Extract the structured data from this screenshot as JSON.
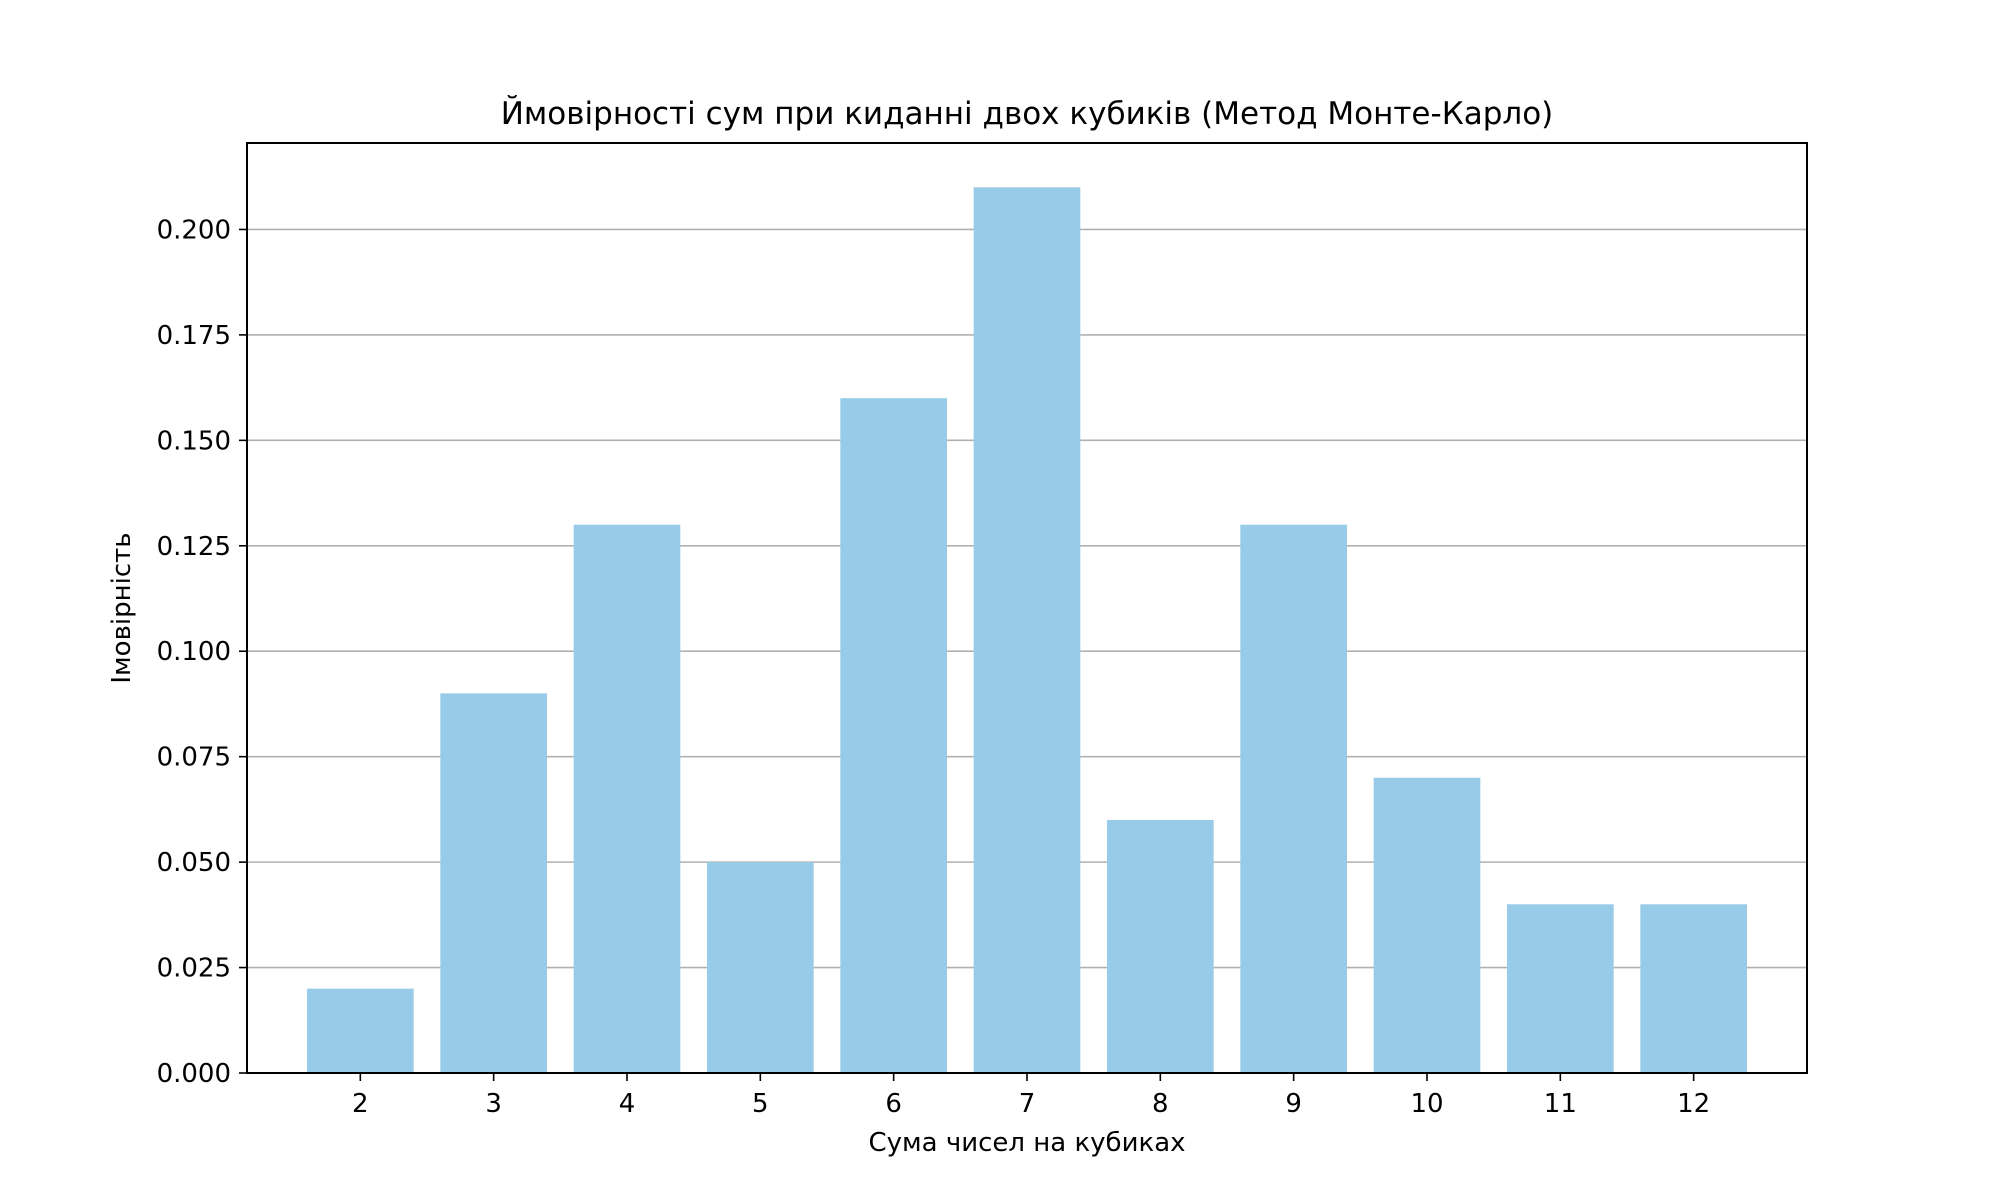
{
  "chart_data": {
    "type": "bar",
    "title": "Ймовірності сум при киданні двох кубиків (Метод Монте-Карло)",
    "xlabel": "Сума чисел на кубиках",
    "ylabel": "Імовірність",
    "categories": [
      "2",
      "3",
      "4",
      "5",
      "6",
      "7",
      "8",
      "9",
      "10",
      "11",
      "12"
    ],
    "values": [
      0.02,
      0.09,
      0.13,
      0.05,
      0.16,
      0.21,
      0.06,
      0.13,
      0.07,
      0.04,
      0.04
    ],
    "ylim": [
      0,
      0.2205
    ],
    "yticks": [
      "0.000",
      "0.025",
      "0.050",
      "0.075",
      "0.100",
      "0.125",
      "0.150",
      "0.175",
      "0.200"
    ],
    "grid": "y-axis",
    "bar_color": "#97cbe7"
  }
}
